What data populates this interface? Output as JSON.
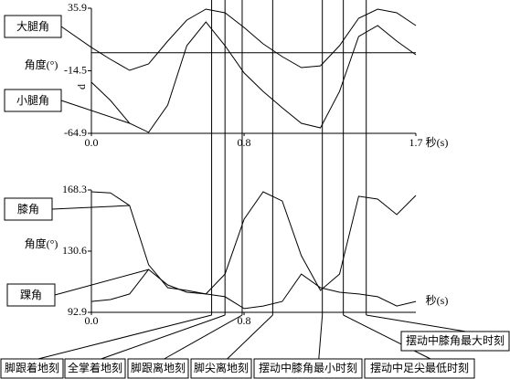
{
  "chart_data": [
    {
      "type": "line",
      "y_label": "角度(°)",
      "y_axis_letter": "d",
      "x_label": "秒(s)",
      "x": [
        0,
        0.1,
        0.2,
        0.3,
        0.4,
        0.5,
        0.6,
        0.7,
        0.8,
        0.9,
        1.0,
        1.1,
        1.2,
        1.3,
        1.4,
        1.5,
        1.6,
        1.7
      ],
      "series": [
        {
          "name": "大腿角",
          "color": "#000000",
          "values": [
            4.3,
            -5.3,
            -14.1,
            -9.0,
            9.4,
            26.3,
            35.2,
            32.2,
            20.4,
            7.2,
            -3.1,
            -11.9,
            -10.5,
            5.7,
            27.8,
            35.2,
            32.2,
            21.9
          ]
        },
        {
          "name": "小腿角",
          "color": "#000000",
          "values": [
            -23.7,
            -38.4,
            -56.8,
            -64.1,
            -42.1,
            5.7,
            24.9,
            5.7,
            -16.3,
            -31.1,
            -44.3,
            -56.8,
            -60.5,
            -31.1,
            13.1,
            21.9,
            9.4,
            -1.6
          ]
        }
      ],
      "xlim": [
        0,
        1.7
      ],
      "xticks": [
        {
          "value": 0,
          "label": "0.0"
        },
        0.8,
        1.7
      ],
      "ylim": [
        -64.9,
        35.9
      ],
      "yticks": [
        35.9,
        -14.5,
        -64.9
      ],
      "reference_line": 0
    },
    {
      "type": "line",
      "y_label": "角度(°)",
      "x_label": "秒(s)",
      "x": [
        0,
        0.1,
        0.2,
        0.3,
        0.4,
        0.5,
        0.6,
        0.7,
        0.8,
        0.9,
        1.0,
        1.1,
        1.2,
        1.3,
        1.4,
        1.5,
        1.6,
        1.7
      ],
      "series": [
        {
          "name": "膝角",
          "color": "#000000",
          "values": [
            167.2,
            166.5,
            158.7,
            122.2,
            108.1,
            106.4,
            104.2,
            116.5,
            150.3,
            167.2,
            161.5,
            127.8,
            106.4,
            116.5,
            164.4,
            162.7,
            153.1,
            164.9
          ]
        },
        {
          "name": "踝角",
          "color": "#000000",
          "values": [
            99.6,
            100.8,
            104.2,
            119.3,
            109.8,
            105.3,
            104.2,
            102.5,
            95.2,
            96.8,
            99.6,
            116.5,
            108.1,
            105.3,
            104.2,
            102.5,
            96.8,
            99.6
          ]
        }
      ],
      "xlim": [
        0,
        1.7
      ],
      "xticks": [
        {
          "value": 0,
          "label": "0.0"
        },
        0.8
      ],
      "ylim": [
        92.9,
        168.3
      ],
      "yticks": [
        168.3,
        130.6,
        92.9
      ]
    }
  ],
  "events": [
    {
      "label": "脚跟着地刻",
      "x": 0.63
    },
    {
      "label": "全掌着地刻",
      "x": 0.7
    },
    {
      "label": "脚跟离地刻",
      "x": 0.79
    },
    {
      "label": "脚尖离地刻",
      "x": 0.95
    },
    {
      "label": "摆动中膝角最小时刻",
      "x": 1.21
    },
    {
      "label": "摆动中足尖最低时刻",
      "x": 1.32
    },
    {
      "label": "摆动中膝角最大时刻",
      "x": 1.44
    }
  ]
}
